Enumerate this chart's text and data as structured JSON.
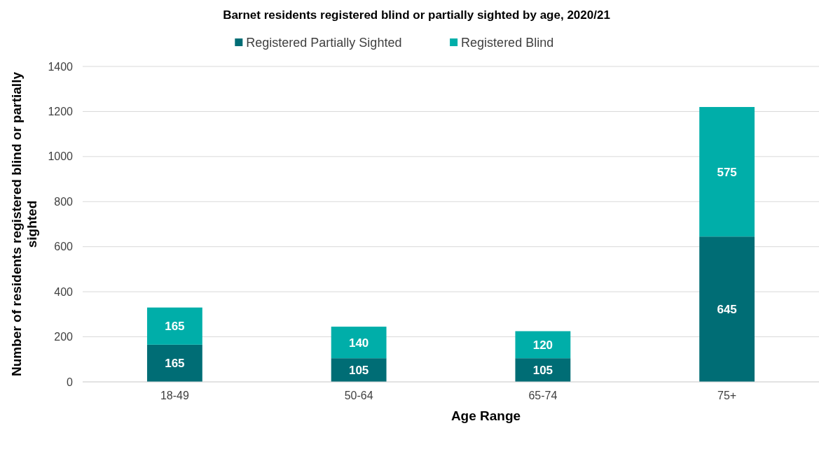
{
  "chart_data": {
    "type": "bar",
    "title": "Barnet residents registered blind or partially sighted by age, 2020/21",
    "xlabel": "Age Range",
    "ylabel": "Number of residents registered blind or partially sighted",
    "categories": [
      "18-49",
      "50-64",
      "65-74",
      "75+"
    ],
    "stacked": true,
    "series": [
      {
        "name": "Registered Partially Sighted",
        "color": "#006d75",
        "values": [
          165,
          105,
          105,
          645
        ]
      },
      {
        "name": "Registered Blind",
        "color": "#00aea9",
        "values": [
          165,
          140,
          120,
          575
        ]
      }
    ],
    "ylim": [
      0,
      1400
    ],
    "yticks": [
      0,
      200,
      400,
      600,
      800,
      1000,
      1200,
      1400
    ],
    "grid": "y",
    "legend": "top",
    "data_labels": true
  }
}
